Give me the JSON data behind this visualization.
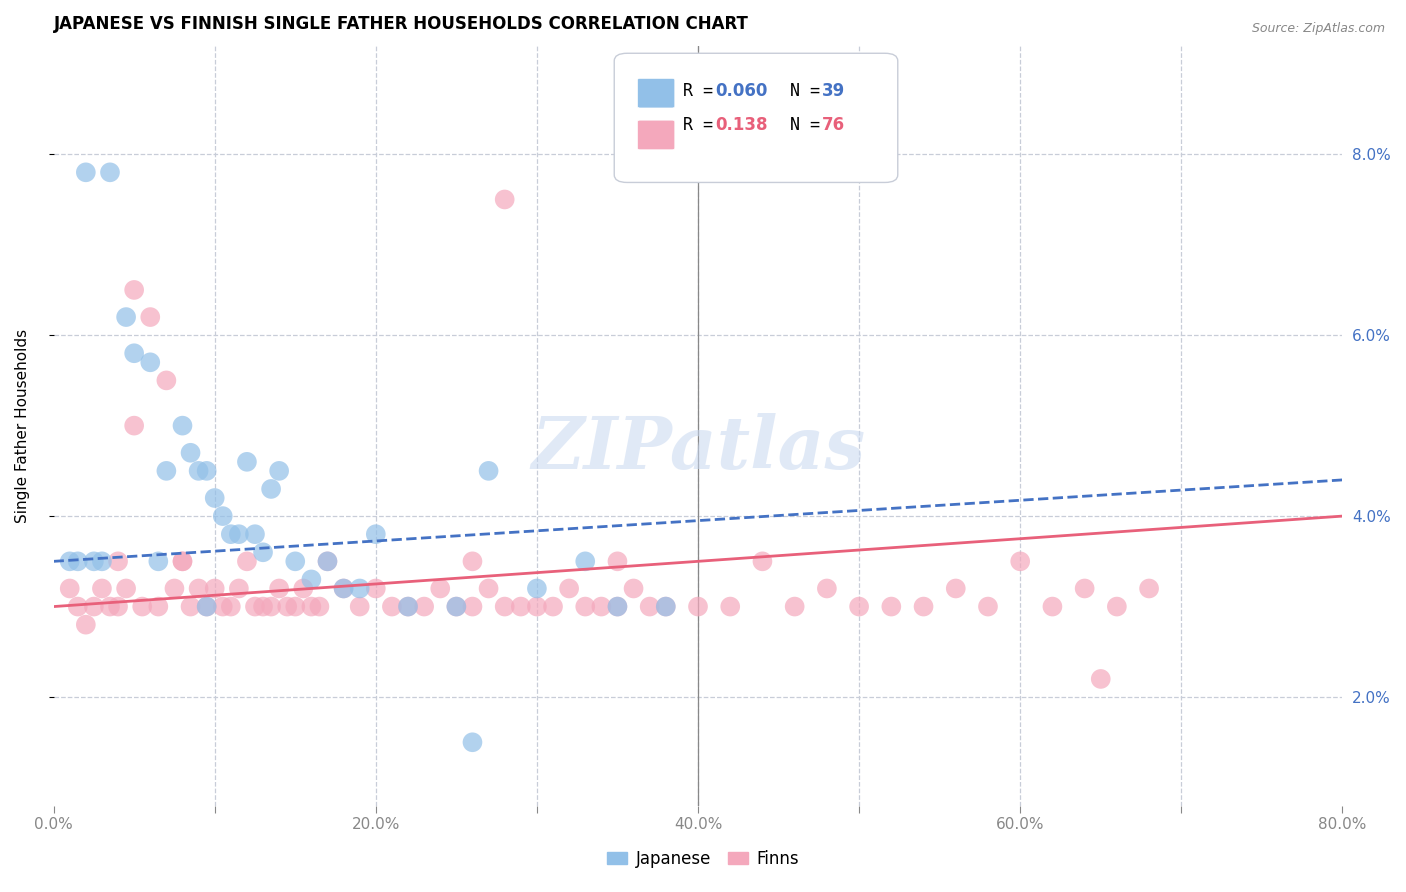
{
  "title": "JAPANESE VS FINNISH SINGLE FATHER HOUSEHOLDS CORRELATION CHART",
  "source": "Source: ZipAtlas.com",
  "ylabel": "Single Father Households",
  "watermark": "ZIPatlas",
  "japanese_color": "#92C0E8",
  "finns_color": "#F4A8BC",
  "japanese_line_color": "#4472C4",
  "finns_line_color": "#E8607A",
  "background_color": "#FFFFFF",
  "grid_color": "#C8CDD8",
  "jap_x": [
    2.0,
    3.5,
    4.5,
    5.0,
    6.0,
    7.0,
    8.0,
    8.5,
    9.0,
    9.5,
    10.0,
    10.5,
    11.0,
    11.5,
    12.0,
    12.5,
    13.0,
    13.5,
    14.0,
    15.0,
    16.0,
    17.0,
    18.0,
    19.0,
    20.0,
    22.0,
    25.0,
    27.0,
    30.0,
    33.0,
    35.0,
    38.0,
    1.0,
    1.5,
    2.5,
    3.0,
    6.5,
    9.5,
    26.0
  ],
  "jap_y": [
    7.8,
    7.8,
    6.2,
    5.8,
    5.7,
    4.5,
    5.0,
    4.7,
    4.5,
    4.5,
    4.2,
    4.0,
    3.8,
    3.8,
    4.6,
    3.8,
    3.6,
    4.3,
    4.5,
    3.5,
    3.3,
    3.5,
    3.2,
    3.2,
    3.8,
    3.0,
    3.0,
    4.5,
    3.2,
    3.5,
    3.0,
    3.0,
    3.5,
    3.5,
    3.5,
    3.5,
    3.5,
    3.0,
    1.5
  ],
  "finn_x": [
    1.0,
    1.5,
    2.0,
    2.5,
    3.0,
    3.5,
    4.0,
    4.5,
    5.0,
    5.5,
    6.0,
    6.5,
    7.0,
    7.5,
    8.0,
    8.5,
    9.0,
    9.5,
    10.0,
    10.5,
    11.0,
    11.5,
    12.0,
    12.5,
    13.0,
    13.5,
    14.0,
    14.5,
    15.0,
    15.5,
    16.0,
    16.5,
    17.0,
    18.0,
    19.0,
    20.0,
    21.0,
    22.0,
    23.0,
    24.0,
    25.0,
    26.0,
    27.0,
    28.0,
    29.0,
    30.0,
    31.0,
    32.0,
    33.0,
    34.0,
    35.0,
    36.0,
    37.0,
    38.0,
    40.0,
    42.0,
    44.0,
    46.0,
    48.0,
    50.0,
    52.0,
    54.0,
    56.0,
    58.0,
    60.0,
    62.0,
    64.0,
    65.0,
    66.0,
    68.0,
    28.0,
    4.0,
    5.0,
    8.0,
    26.0,
    35.0
  ],
  "finn_y": [
    3.2,
    3.0,
    2.8,
    3.0,
    3.2,
    3.0,
    3.0,
    3.2,
    6.5,
    3.0,
    6.2,
    3.0,
    5.5,
    3.2,
    3.5,
    3.0,
    3.2,
    3.0,
    3.2,
    3.0,
    3.0,
    3.2,
    3.5,
    3.0,
    3.0,
    3.0,
    3.2,
    3.0,
    3.0,
    3.2,
    3.0,
    3.0,
    3.5,
    3.2,
    3.0,
    3.2,
    3.0,
    3.0,
    3.0,
    3.2,
    3.0,
    3.0,
    3.2,
    3.0,
    3.0,
    3.0,
    3.0,
    3.2,
    3.0,
    3.0,
    3.0,
    3.2,
    3.0,
    3.0,
    3.0,
    3.0,
    3.5,
    3.0,
    3.2,
    3.0,
    3.0,
    3.0,
    3.2,
    3.0,
    3.5,
    3.0,
    3.2,
    2.2,
    3.0,
    3.2,
    7.5,
    3.5,
    5.0,
    3.5,
    3.5,
    3.5
  ]
}
